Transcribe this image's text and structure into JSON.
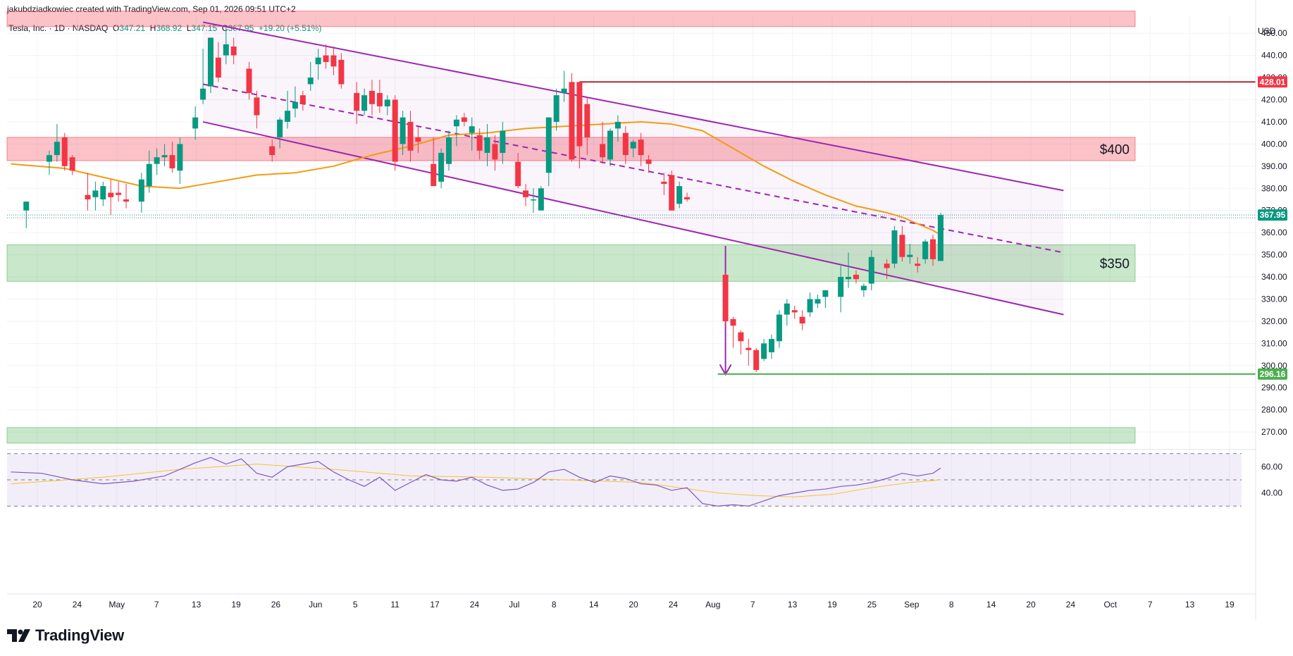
{
  "header": {
    "attribution": "jakubdziadkowiec created with TradingView.com, Sep 01, 2026 09:51 UTC+2",
    "symbol_line": "Tesla, Inc. · 1D · NASDAQ",
    "o_label": "O",
    "o_value": "347.21",
    "h_label": "H",
    "h_value": "368.92",
    "l_label": "L",
    "l_value": "347.15",
    "c_label": "C",
    "c_value": "367.95",
    "change": "+19.20 (+5.51%)"
  },
  "brand": {
    "name": "TradingView"
  },
  "chart_data": {
    "type": "candlestick",
    "currency": "USD",
    "ylim": [
      264,
      458
    ],
    "y_ticks": [
      "270.00",
      "280.00",
      "290.00",
      "300.00",
      "310.00",
      "320.00",
      "330.00",
      "340.00",
      "350.00",
      "360.00",
      "370.00",
      "380.00",
      "390.00",
      "400.00",
      "410.00",
      "420.00",
      "430.00",
      "440.00",
      "450.00"
    ],
    "x_ticks": [
      "20",
      "24",
      "May",
      "7",
      "13",
      "19",
      "26",
      "Jun",
      "5",
      "11",
      "17",
      "24",
      "Jul",
      "8",
      "14",
      "20",
      "24",
      "Aug",
      "7",
      "13",
      "19",
      "25",
      "Sep",
      "8",
      "14",
      "20",
      "24",
      "Oct",
      "7",
      "13",
      "19"
    ],
    "x_range_days": [
      -2.5,
      160
    ],
    "price_labels": [
      {
        "value": 428.01,
        "text": "428.01",
        "color": "#f23645"
      },
      {
        "value": 367.95,
        "text": "367.95",
        "color": "#089981"
      },
      {
        "value": 296.16,
        "text": "296.16",
        "color": "#4caf50"
      }
    ],
    "zones": [
      {
        "from": 453,
        "to": 460,
        "color": "red",
        "label": ""
      },
      {
        "from": 392.5,
        "to": 403,
        "color": "red",
        "label": "$400"
      },
      {
        "from": 338,
        "to": 354.5,
        "color": "green",
        "label": "$350"
      },
      {
        "from": 265,
        "to": 272,
        "color": "green",
        "label": ""
      }
    ],
    "levels": [
      {
        "value": 428.01,
        "from_day": 72,
        "color": "#b22833"
      },
      {
        "value": 296.16,
        "from_day": 90,
        "color": "#4caf50"
      }
    ],
    "channel": {
      "upper": [
        [
          23,
          455
        ],
        [
          135,
          379
        ]
      ],
      "lower": [
        [
          23,
          410
        ],
        [
          135,
          323
        ]
      ],
      "mid": [
        [
          23,
          427
        ],
        [
          135,
          351
        ]
      ]
    },
    "arrow": {
      "day": 91,
      "from": 354,
      "to": 296
    },
    "candles": [
      {
        "d": 0,
        "o": 370,
        "h": 374,
        "l": 362,
        "c": 374
      },
      {
        "d": 3,
        "o": 392,
        "h": 397,
        "l": 386,
        "c": 395
      },
      {
        "d": 4,
        "o": 395,
        "h": 409,
        "l": 392,
        "c": 401
      },
      {
        "d": 5,
        "o": 403,
        "h": 405,
        "l": 388,
        "c": 390
      },
      {
        "d": 6,
        "o": 394,
        "h": 395,
        "l": 386,
        "c": 388
      },
      {
        "d": 8,
        "o": 377,
        "h": 387,
        "l": 370,
        "c": 375
      },
      {
        "d": 9,
        "o": 376,
        "h": 383,
        "l": 370,
        "c": 379
      },
      {
        "d": 10,
        "o": 375,
        "h": 383,
        "l": 372,
        "c": 381
      },
      {
        "d": 11,
        "o": 378,
        "h": 384,
        "l": 368,
        "c": 376
      },
      {
        "d": 12,
        "o": 378,
        "h": 383,
        "l": 374,
        "c": 377
      },
      {
        "d": 13,
        "o": 375,
        "h": 382,
        "l": 371,
        "c": 374
      },
      {
        "d": 15,
        "o": 374,
        "h": 387,
        "l": 369,
        "c": 384
      },
      {
        "d": 16,
        "o": 381,
        "h": 397,
        "l": 378,
        "c": 391
      },
      {
        "d": 17,
        "o": 391,
        "h": 398,
        "l": 386,
        "c": 394
      },
      {
        "d": 18,
        "o": 394,
        "h": 400,
        "l": 390,
        "c": 395
      },
      {
        "d": 19,
        "o": 395,
        "h": 401,
        "l": 387,
        "c": 389
      },
      {
        "d": 20,
        "o": 388,
        "h": 403,
        "l": 382,
        "c": 400
      },
      {
        "d": 22,
        "o": 407,
        "h": 417,
        "l": 402,
        "c": 412
      },
      {
        "d": 23,
        "o": 420,
        "h": 443,
        "l": 418,
        "c": 425
      },
      {
        "d": 24,
        "o": 426,
        "h": 448,
        "l": 423,
        "c": 448
      },
      {
        "d": 25,
        "o": 439,
        "h": 446,
        "l": 428,
        "c": 430
      },
      {
        "d": 26,
        "o": 440,
        "h": 453,
        "l": 436,
        "c": 445
      },
      {
        "d": 27,
        "o": 444,
        "h": 448,
        "l": 436,
        "c": 440
      },
      {
        "d": 29,
        "o": 434,
        "h": 437,
        "l": 420,
        "c": 423
      },
      {
        "d": 30,
        "o": 421,
        "h": 424,
        "l": 407,
        "c": 413
      },
      {
        "d": 32,
        "o": 399,
        "h": 402,
        "l": 392,
        "c": 395
      },
      {
        "d": 33,
        "o": 403,
        "h": 412,
        "l": 398,
        "c": 411
      },
      {
        "d": 34,
        "o": 410,
        "h": 424,
        "l": 407,
        "c": 415
      },
      {
        "d": 35,
        "o": 416,
        "h": 426,
        "l": 412,
        "c": 419
      },
      {
        "d": 36,
        "o": 422,
        "h": 424,
        "l": 415,
        "c": 418
      },
      {
        "d": 37,
        "o": 427,
        "h": 437,
        "l": 424,
        "c": 430
      },
      {
        "d": 38,
        "o": 436,
        "h": 443,
        "l": 429,
        "c": 439
      },
      {
        "d": 39,
        "o": 440,
        "h": 445,
        "l": 434,
        "c": 437
      },
      {
        "d": 40,
        "o": 440,
        "h": 444,
        "l": 431,
        "c": 435
      },
      {
        "d": 41,
        "o": 438,
        "h": 441,
        "l": 425,
        "c": 427
      },
      {
        "d": 43,
        "o": 423,
        "h": 428,
        "l": 409,
        "c": 415
      },
      {
        "d": 44,
        "o": 415,
        "h": 425,
        "l": 413,
        "c": 422
      },
      {
        "d": 45,
        "o": 424,
        "h": 429,
        "l": 413,
        "c": 418
      },
      {
        "d": 46,
        "o": 423,
        "h": 429,
        "l": 414,
        "c": 417
      },
      {
        "d": 47,
        "o": 417,
        "h": 422,
        "l": 413,
        "c": 420
      },
      {
        "d": 48,
        "o": 420,
        "h": 422,
        "l": 388,
        "c": 392
      },
      {
        "d": 49,
        "o": 400,
        "h": 415,
        "l": 395,
        "c": 412
      },
      {
        "d": 50,
        "o": 410,
        "h": 415,
        "l": 392,
        "c": 397
      },
      {
        "d": 51,
        "o": 403,
        "h": 408,
        "l": 396,
        "c": 401
      },
      {
        "d": 53,
        "o": 391,
        "h": 403,
        "l": 382,
        "c": 381
      },
      {
        "d": 54,
        "o": 383,
        "h": 398,
        "l": 380,
        "c": 396
      },
      {
        "d": 55,
        "o": 391,
        "h": 406,
        "l": 388,
        "c": 403
      },
      {
        "d": 56,
        "o": 408,
        "h": 413,
        "l": 399,
        "c": 411
      },
      {
        "d": 57,
        "o": 412,
        "h": 414,
        "l": 408,
        "c": 410
      },
      {
        "d": 58,
        "o": 405,
        "h": 412,
        "l": 397,
        "c": 408
      },
      {
        "d": 59,
        "o": 404,
        "h": 407,
        "l": 393,
        "c": 397
      },
      {
        "d": 60,
        "o": 396,
        "h": 409,
        "l": 390,
        "c": 403
      },
      {
        "d": 61,
        "o": 400,
        "h": 404,
        "l": 388,
        "c": 393
      },
      {
        "d": 62,
        "o": 396,
        "h": 410,
        "l": 391,
        "c": 406
      },
      {
        "d": 64,
        "o": 392,
        "h": 396,
        "l": 380,
        "c": 381
      },
      {
        "d": 65,
        "o": 379,
        "h": 382,
        "l": 372,
        "c": 376
      },
      {
        "d": 66,
        "o": 375,
        "h": 380,
        "l": 369,
        "c": 375
      },
      {
        "d": 67,
        "o": 370,
        "h": 381,
        "l": 370,
        "c": 380
      },
      {
        "d": 68,
        "o": 387,
        "h": 412,
        "l": 381,
        "c": 412
      },
      {
        "d": 69,
        "o": 410,
        "h": 425,
        "l": 406,
        "c": 422
      },
      {
        "d": 70,
        "o": 423,
        "h": 433,
        "l": 419,
        "c": 425
      },
      {
        "d": 71,
        "o": 428,
        "h": 432,
        "l": 392,
        "c": 393
      },
      {
        "d": 72,
        "o": 428,
        "h": 428,
        "l": 389,
        "c": 399
      },
      {
        "d": 73,
        "o": 418,
        "h": 421,
        "l": 395,
        "c": 403
      },
      {
        "d": 75,
        "o": 400,
        "h": 410,
        "l": 391,
        "c": 394
      },
      {
        "d": 76,
        "o": 393,
        "h": 407,
        "l": 390,
        "c": 406
      },
      {
        "d": 77,
        "o": 407,
        "h": 413,
        "l": 401,
        "c": 410
      },
      {
        "d": 78,
        "o": 405,
        "h": 408,
        "l": 391,
        "c": 395
      },
      {
        "d": 79,
        "o": 398,
        "h": 402,
        "l": 394,
        "c": 401
      },
      {
        "d": 80,
        "o": 402,
        "h": 405,
        "l": 390,
        "c": 395
      },
      {
        "d": 81,
        "o": 393,
        "h": 395,
        "l": 387,
        "c": 391
      },
      {
        "d": 83,
        "o": 383,
        "h": 387,
        "l": 377,
        "c": 382
      },
      {
        "d": 84,
        "o": 386,
        "h": 388,
        "l": 370,
        "c": 370
      },
      {
        "d": 85,
        "o": 373,
        "h": 383,
        "l": 371,
        "c": 381
      },
      {
        "d": 86,
        "o": 376,
        "h": 378,
        "l": 374,
        "c": 375
      },
      {
        "d": 91,
        "o": 341,
        "h": 342,
        "l": 318,
        "c": 320
      },
      {
        "d": 92,
        "o": 321,
        "h": 322,
        "l": 308,
        "c": 318
      },
      {
        "d": 93,
        "o": 315,
        "h": 316,
        "l": 305,
        "c": 311
      },
      {
        "d": 94,
        "o": 308,
        "h": 312,
        "l": 300,
        "c": 307
      },
      {
        "d": 95,
        "o": 307,
        "h": 308,
        "l": 297,
        "c": 298
      },
      {
        "d": 96,
        "o": 303,
        "h": 312,
        "l": 302,
        "c": 310
      },
      {
        "d": 97,
        "o": 306,
        "h": 314,
        "l": 303,
        "c": 312
      },
      {
        "d": 98,
        "o": 311,
        "h": 325,
        "l": 308,
        "c": 323
      },
      {
        "d": 99,
        "o": 323,
        "h": 330,
        "l": 318,
        "c": 328
      },
      {
        "d": 100,
        "o": 325,
        "h": 327,
        "l": 321,
        "c": 324
      },
      {
        "d": 101,
        "o": 322,
        "h": 325,
        "l": 316,
        "c": 319
      },
      {
        "d": 102,
        "o": 324,
        "h": 333,
        "l": 322,
        "c": 330
      },
      {
        "d": 103,
        "o": 328,
        "h": 332,
        "l": 326,
        "c": 330
      },
      {
        "d": 104,
        "o": 331,
        "h": 334,
        "l": 326,
        "c": 334
      },
      {
        "d": 106,
        "o": 331,
        "h": 345,
        "l": 324,
        "c": 340
      },
      {
        "d": 107,
        "o": 339,
        "h": 351,
        "l": 335,
        "c": 340
      },
      {
        "d": 108,
        "o": 341,
        "h": 343,
        "l": 337,
        "c": 339
      },
      {
        "d": 109,
        "o": 334,
        "h": 337,
        "l": 331,
        "c": 336
      },
      {
        "d": 110,
        "o": 337,
        "h": 352,
        "l": 334,
        "c": 349
      },
      {
        "d": 112,
        "o": 346,
        "h": 348,
        "l": 339,
        "c": 344
      },
      {
        "d": 113,
        "o": 346,
        "h": 363,
        "l": 344,
        "c": 361
      },
      {
        "d": 114,
        "o": 359,
        "h": 363,
        "l": 347,
        "c": 349
      },
      {
        "d": 115,
        "o": 349,
        "h": 355,
        "l": 346,
        "c": 350
      },
      {
        "d": 116,
        "o": 346,
        "h": 349,
        "l": 342,
        "c": 345
      },
      {
        "d": 117,
        "o": 348,
        "h": 357,
        "l": 346,
        "c": 356
      },
      {
        "d": 118,
        "o": 357,
        "h": 359,
        "l": 345,
        "c": 348
      },
      {
        "d": 119,
        "o": 347.21,
        "h": 368.92,
        "l": 347.15,
        "c": 367.95
      }
    ],
    "ma": [
      [
        -2,
        391
      ],
      [
        5,
        389
      ],
      [
        10,
        385
      ],
      [
        15,
        381
      ],
      [
        20,
        380
      ],
      [
        25,
        383
      ],
      [
        30,
        386
      ],
      [
        35,
        387
      ],
      [
        40,
        390
      ],
      [
        45,
        395
      ],
      [
        50,
        399
      ],
      [
        55,
        404
      ],
      [
        60,
        405
      ],
      [
        65,
        407
      ],
      [
        70,
        408
      ],
      [
        75,
        409
      ],
      [
        80,
        410
      ],
      [
        84,
        409
      ],
      [
        88,
        406
      ],
      [
        92,
        398
      ],
      [
        96,
        390
      ],
      [
        100,
        383
      ],
      [
        104,
        377
      ],
      [
        108,
        372
      ],
      [
        112,
        369
      ],
      [
        114,
        367
      ],
      [
        116,
        364
      ],
      [
        118,
        361
      ],
      [
        119,
        359
      ]
    ],
    "rsi": {
      "ylim": [
        28,
        72
      ],
      "band_top": 70,
      "band_mid": 50,
      "band_bottom": 30,
      "y_ticks": [
        "40.00",
        "60.00"
      ],
      "line": [
        [
          -2,
          56
        ],
        [
          2,
          55
        ],
        [
          6,
          50
        ],
        [
          10,
          47
        ],
        [
          14,
          49
        ],
        [
          18,
          53
        ],
        [
          22,
          63
        ],
        [
          24,
          67
        ],
        [
          26,
          62
        ],
        [
          28,
          66
        ],
        [
          30,
          55
        ],
        [
          32,
          52
        ],
        [
          34,
          60
        ],
        [
          36,
          62
        ],
        [
          38,
          64
        ],
        [
          40,
          56
        ],
        [
          42,
          50
        ],
        [
          44,
          45
        ],
        [
          46,
          52
        ],
        [
          48,
          42
        ],
        [
          50,
          48
        ],
        [
          52,
          54
        ],
        [
          54,
          50
        ],
        [
          56,
          49
        ],
        [
          58,
          52
        ],
        [
          60,
          46
        ],
        [
          62,
          42
        ],
        [
          64,
          43
        ],
        [
          66,
          48
        ],
        [
          68,
          56
        ],
        [
          70,
          58
        ],
        [
          72,
          52
        ],
        [
          74,
          48
        ],
        [
          76,
          53
        ],
        [
          78,
          51
        ],
        [
          80,
          47
        ],
        [
          82,
          46
        ],
        [
          84,
          42
        ],
        [
          86,
          44
        ],
        [
          88,
          32
        ],
        [
          90,
          30
        ],
        [
          92,
          31
        ],
        [
          94,
          30
        ],
        [
          96,
          34
        ],
        [
          98,
          38
        ],
        [
          100,
          40
        ],
        [
          102,
          42
        ],
        [
          104,
          43
        ],
        [
          106,
          45
        ],
        [
          108,
          46
        ],
        [
          110,
          48
        ],
        [
          112,
          51
        ],
        [
          114,
          55
        ],
        [
          116,
          53
        ],
        [
          118,
          55
        ],
        [
          119,
          59
        ]
      ],
      "ma": [
        [
          -2,
          47
        ],
        [
          10,
          52
        ],
        [
          20,
          58
        ],
        [
          30,
          62
        ],
        [
          40,
          58
        ],
        [
          50,
          53
        ],
        [
          60,
          52
        ],
        [
          70,
          50
        ],
        [
          80,
          48
        ],
        [
          90,
          40
        ],
        [
          95,
          38
        ],
        [
          100,
          37
        ],
        [
          105,
          39
        ],
        [
          110,
          44
        ],
        [
          115,
          48
        ],
        [
          119,
          50
        ]
      ]
    }
  }
}
